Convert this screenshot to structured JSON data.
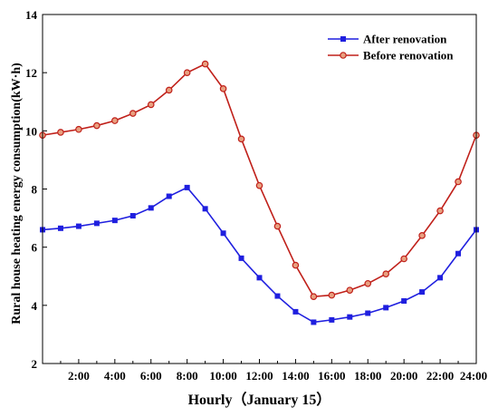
{
  "chart_data": {
    "type": "line",
    "title": "",
    "xlabel": "Hourly（January 15）",
    "ylabel": "Rural house heating energy consumption(kW·h)",
    "xlim": [
      0,
      24
    ],
    "ylim": [
      2,
      14
    ],
    "x": [
      0,
      1,
      2,
      3,
      4,
      5,
      6,
      7,
      8,
      9,
      10,
      11,
      12,
      13,
      14,
      15,
      16,
      17,
      18,
      19,
      20,
      21,
      22,
      23,
      24
    ],
    "x_ticks": [
      2,
      4,
      6,
      8,
      10,
      12,
      14,
      16,
      18,
      20,
      22,
      24
    ],
    "x_tick_labels": [
      "2:00",
      "4:00",
      "6:00",
      "8:00",
      "10:00",
      "12:00",
      "14:00",
      "16:00",
      "18:00",
      "20:00",
      "22:00",
      "24:00"
    ],
    "y_ticks": [
      2,
      4,
      6,
      8,
      10,
      12,
      14
    ],
    "y_tick_labels": [
      "2",
      "4",
      "6",
      "8",
      "10",
      "12",
      "14"
    ],
    "grid": false,
    "legend_position": "top-right",
    "series": [
      {
        "name": "After renovation",
        "color": "#1f1fdf",
        "marker": "square",
        "values": [
          6.6,
          6.65,
          6.72,
          6.82,
          6.92,
          7.08,
          7.35,
          7.75,
          8.05,
          7.32,
          6.48,
          5.62,
          4.95,
          4.32,
          3.78,
          3.42,
          3.5,
          3.6,
          3.73,
          3.92,
          4.15,
          4.46,
          4.95,
          5.78,
          6.6
        ]
      },
      {
        "name": "Before renovation",
        "color": "#c0201a",
        "marker": "circle",
        "values": [
          9.85,
          9.95,
          10.05,
          10.18,
          10.35,
          10.6,
          10.9,
          11.4,
          12.0,
          12.3,
          11.45,
          9.72,
          8.12,
          6.72,
          5.38,
          4.3,
          4.35,
          4.52,
          4.75,
          5.08,
          5.6,
          6.4,
          7.25,
          8.25,
          9.85
        ]
      }
    ]
  }
}
